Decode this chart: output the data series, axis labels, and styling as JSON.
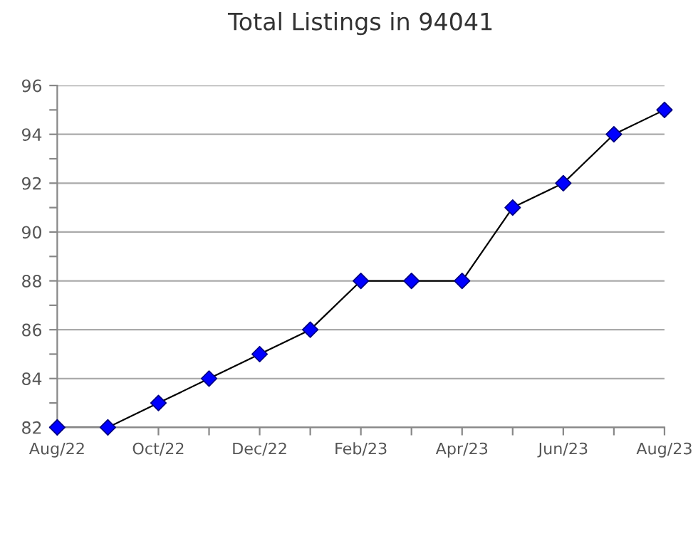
{
  "chart_data": {
    "type": "line",
    "title": "Total Listings in 94041",
    "categories": [
      "Aug/22",
      null,
      "Oct/22",
      null,
      "Dec/22",
      null,
      "Feb/23",
      null,
      "Apr/23",
      null,
      "Jun/23",
      null,
      "Aug/23"
    ],
    "series": [
      {
        "color": "#0000ff",
        "values": [
          82,
          82,
          83,
          84,
          85,
          86,
          88,
          88,
          88,
          91,
          92,
          94,
          95
        ]
      }
    ],
    "ylim": [
      82,
      96
    ],
    "yticks": [
      82,
      {
        "value": 83,
        "label": null
      },
      84,
      {
        "value": 85,
        "label": null
      },
      86,
      {
        "value": 87,
        "label": null
      },
      88,
      {
        "value": 89,
        "label": null
      },
      90,
      {
        "value": 91,
        "label": null
      },
      92,
      {
        "value": 93,
        "label": null
      },
      94,
      {
        "value": 95,
        "label": null
      },
      96
    ],
    "grid": "y",
    "marker": "diamond",
    "line_style": "solid"
  }
}
